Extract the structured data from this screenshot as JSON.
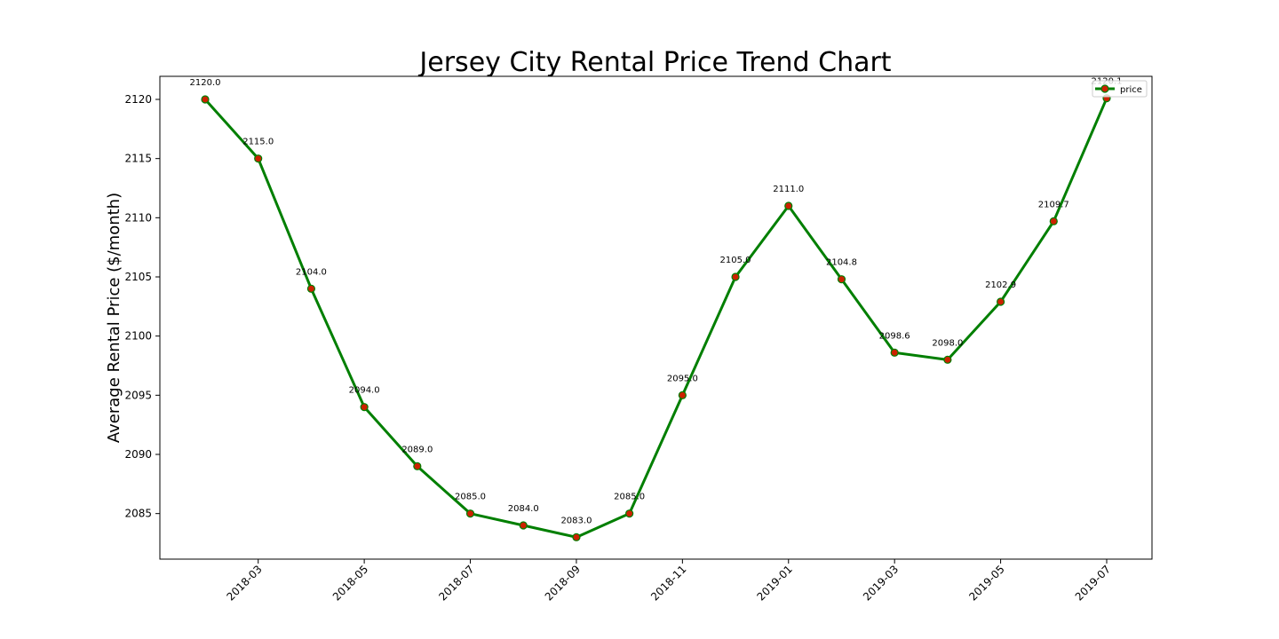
{
  "chart_data": {
    "type": "line",
    "title": "Jersey City Rental Price Trend Chart",
    "xlabel": "",
    "ylabel": "Average Rental Price ($/month)",
    "x": [
      "2018-02",
      "2018-03",
      "2018-04",
      "2018-05",
      "2018-06",
      "2018-07",
      "2018-08",
      "2018-09",
      "2018-10",
      "2018-11",
      "2018-12",
      "2019-01",
      "2019-02",
      "2019-03",
      "2019-04",
      "2019-05",
      "2019-06",
      "2019-07"
    ],
    "x_ticks": [
      "2018-03",
      "2018-05",
      "2018-07",
      "2018-09",
      "2018-11",
      "2019-01",
      "2019-03",
      "2019-05",
      "2019-07"
    ],
    "y_ticks": [
      2085,
      2090,
      2095,
      2100,
      2105,
      2110,
      2115,
      2120
    ],
    "ylim": [
      2081.15,
      2121.95
    ],
    "grid": false,
    "legend_position": "top-right",
    "series": [
      {
        "name": "price",
        "line_color": "#007f00",
        "marker_color": "#cc2200",
        "values": [
          2120.0,
          2115.0,
          2104.0,
          2094.0,
          2089.0,
          2085.0,
          2084.0,
          2083.0,
          2085.0,
          2095.0,
          2105.0,
          2111.0,
          2104.8,
          2098.6,
          2098.0,
          2102.9,
          2109.7,
          2120.1
        ],
        "labels": [
          "2120.0",
          "2115.0",
          "2104.0",
          "2094.0",
          "2089.0",
          "2085.0",
          "2084.0",
          "2083.0",
          "2085.0",
          "2095.0",
          "2105.0",
          "2111.0",
          "2104.8",
          "2098.6",
          "2098.0",
          "2102.9",
          "2109.7",
          "2120.1"
        ]
      }
    ]
  }
}
